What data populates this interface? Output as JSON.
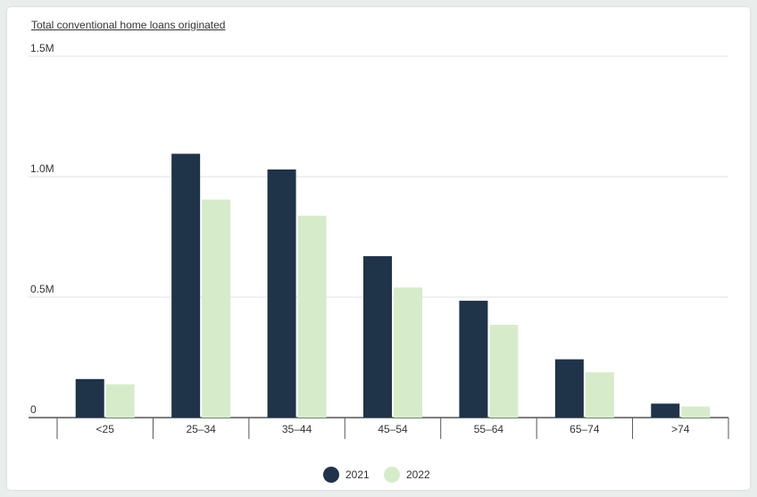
{
  "chart_data": {
    "type": "bar",
    "title": "Total conventional home loans originated",
    "categories": [
      "<25",
      "25–34",
      "35–44",
      "45–54",
      "55–64",
      "65–74",
      ">74"
    ],
    "series": [
      {
        "name": "2021",
        "color": "#1f3349",
        "values": [
          160000,
          1095000,
          1030000,
          670000,
          485000,
          242000,
          58000
        ]
      },
      {
        "name": "2022",
        "color": "#d6ecc9",
        "values": [
          138000,
          905000,
          838000,
          540000,
          385000,
          188000,
          46000
        ]
      }
    ],
    "ylim": [
      0,
      1500000
    ],
    "yticks": [
      {
        "value": 0,
        "label": "0"
      },
      {
        "value": 500000,
        "label": "0.5M"
      },
      {
        "value": 1000000,
        "label": "1.0M"
      },
      {
        "value": 1500000,
        "label": "1.5M"
      }
    ],
    "grid": true,
    "legend_position": "bottom-center",
    "xlabel": "",
    "ylabel": ""
  }
}
